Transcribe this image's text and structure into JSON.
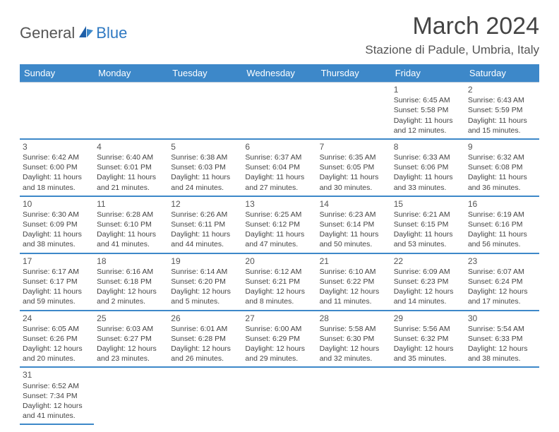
{
  "logo": {
    "general": "General",
    "blue": "Blue"
  },
  "title": "March 2024",
  "location": "Stazione di Padule, Umbria, Italy",
  "colors": {
    "header_bg": "#3d88c9",
    "header_text": "#ffffff",
    "cell_border_top": "#b7c8d8",
    "cell_border_bottom": "#3d88c9",
    "text": "#444444",
    "logo_gray": "#555555",
    "logo_blue": "#2f79c2"
  },
  "weekdays": [
    "Sunday",
    "Monday",
    "Tuesday",
    "Wednesday",
    "Thursday",
    "Friday",
    "Saturday"
  ],
  "days": {
    "1": {
      "sunrise": "6:45 AM",
      "sunset": "5:58 PM",
      "daylight": "11 hours and 12 minutes."
    },
    "2": {
      "sunrise": "6:43 AM",
      "sunset": "5:59 PM",
      "daylight": "11 hours and 15 minutes."
    },
    "3": {
      "sunrise": "6:42 AM",
      "sunset": "6:00 PM",
      "daylight": "11 hours and 18 minutes."
    },
    "4": {
      "sunrise": "6:40 AM",
      "sunset": "6:01 PM",
      "daylight": "11 hours and 21 minutes."
    },
    "5": {
      "sunrise": "6:38 AM",
      "sunset": "6:03 PM",
      "daylight": "11 hours and 24 minutes."
    },
    "6": {
      "sunrise": "6:37 AM",
      "sunset": "6:04 PM",
      "daylight": "11 hours and 27 minutes."
    },
    "7": {
      "sunrise": "6:35 AM",
      "sunset": "6:05 PM",
      "daylight": "11 hours and 30 minutes."
    },
    "8": {
      "sunrise": "6:33 AM",
      "sunset": "6:06 PM",
      "daylight": "11 hours and 33 minutes."
    },
    "9": {
      "sunrise": "6:32 AM",
      "sunset": "6:08 PM",
      "daylight": "11 hours and 36 minutes."
    },
    "10": {
      "sunrise": "6:30 AM",
      "sunset": "6:09 PM",
      "daylight": "11 hours and 38 minutes."
    },
    "11": {
      "sunrise": "6:28 AM",
      "sunset": "6:10 PM",
      "daylight": "11 hours and 41 minutes."
    },
    "12": {
      "sunrise": "6:26 AM",
      "sunset": "6:11 PM",
      "daylight": "11 hours and 44 minutes."
    },
    "13": {
      "sunrise": "6:25 AM",
      "sunset": "6:12 PM",
      "daylight": "11 hours and 47 minutes."
    },
    "14": {
      "sunrise": "6:23 AM",
      "sunset": "6:14 PM",
      "daylight": "11 hours and 50 minutes."
    },
    "15": {
      "sunrise": "6:21 AM",
      "sunset": "6:15 PM",
      "daylight": "11 hours and 53 minutes."
    },
    "16": {
      "sunrise": "6:19 AM",
      "sunset": "6:16 PM",
      "daylight": "11 hours and 56 minutes."
    },
    "17": {
      "sunrise": "6:17 AM",
      "sunset": "6:17 PM",
      "daylight": "11 hours and 59 minutes."
    },
    "18": {
      "sunrise": "6:16 AM",
      "sunset": "6:18 PM",
      "daylight": "12 hours and 2 minutes."
    },
    "19": {
      "sunrise": "6:14 AM",
      "sunset": "6:20 PM",
      "daylight": "12 hours and 5 minutes."
    },
    "20": {
      "sunrise": "6:12 AM",
      "sunset": "6:21 PM",
      "daylight": "12 hours and 8 minutes."
    },
    "21": {
      "sunrise": "6:10 AM",
      "sunset": "6:22 PM",
      "daylight": "12 hours and 11 minutes."
    },
    "22": {
      "sunrise": "6:09 AM",
      "sunset": "6:23 PM",
      "daylight": "12 hours and 14 minutes."
    },
    "23": {
      "sunrise": "6:07 AM",
      "sunset": "6:24 PM",
      "daylight": "12 hours and 17 minutes."
    },
    "24": {
      "sunrise": "6:05 AM",
      "sunset": "6:26 PM",
      "daylight": "12 hours and 20 minutes."
    },
    "25": {
      "sunrise": "6:03 AM",
      "sunset": "6:27 PM",
      "daylight": "12 hours and 23 minutes."
    },
    "26": {
      "sunrise": "6:01 AM",
      "sunset": "6:28 PM",
      "daylight": "12 hours and 26 minutes."
    },
    "27": {
      "sunrise": "6:00 AM",
      "sunset": "6:29 PM",
      "daylight": "12 hours and 29 minutes."
    },
    "28": {
      "sunrise": "5:58 AM",
      "sunset": "6:30 PM",
      "daylight": "12 hours and 32 minutes."
    },
    "29": {
      "sunrise": "5:56 AM",
      "sunset": "6:32 PM",
      "daylight": "12 hours and 35 minutes."
    },
    "30": {
      "sunrise": "5:54 AM",
      "sunset": "6:33 PM",
      "daylight": "12 hours and 38 minutes."
    },
    "31": {
      "sunrise": "6:52 AM",
      "sunset": "7:34 PM",
      "daylight": "12 hours and 41 minutes."
    }
  },
  "labels": {
    "sunrise": "Sunrise:",
    "sunset": "Sunset:",
    "daylight": "Daylight:"
  },
  "grid": [
    [
      null,
      null,
      null,
      null,
      null,
      "1",
      "2"
    ],
    [
      "3",
      "4",
      "5",
      "6",
      "7",
      "8",
      "9"
    ],
    [
      "10",
      "11",
      "12",
      "13",
      "14",
      "15",
      "16"
    ],
    [
      "17",
      "18",
      "19",
      "20",
      "21",
      "22",
      "23"
    ],
    [
      "24",
      "25",
      "26",
      "27",
      "28",
      "29",
      "30"
    ],
    [
      "31",
      null,
      null,
      null,
      null,
      null,
      null
    ]
  ]
}
